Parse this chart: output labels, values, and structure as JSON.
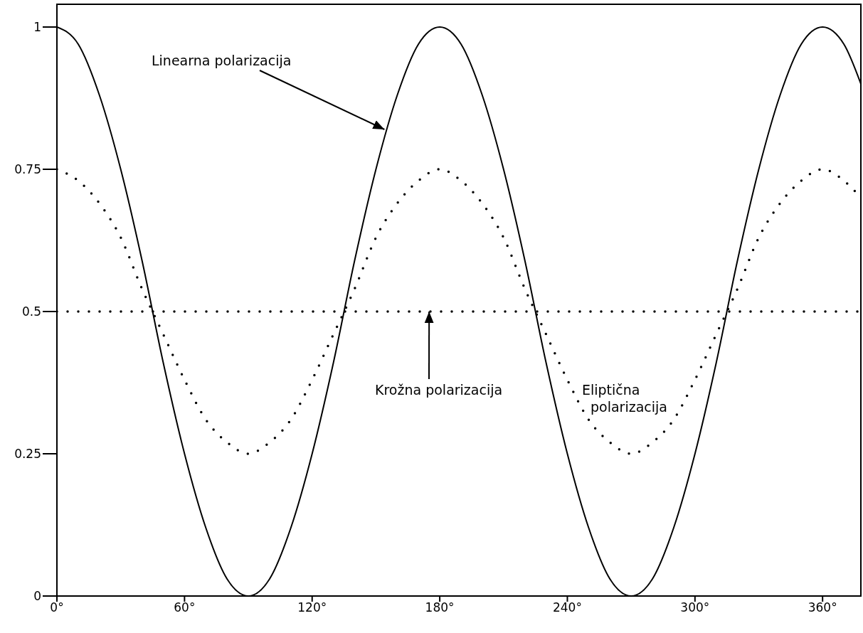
{
  "chart_data": {
    "type": "line",
    "xlim": [
      0,
      378
    ],
    "ylim": [
      0,
      1.04
    ],
    "xticks": [
      {
        "value": 0,
        "label": "0°"
      },
      {
        "value": 60,
        "label": "60°"
      },
      {
        "value": 120,
        "label": "120°"
      },
      {
        "value": 180,
        "label": "180°"
      },
      {
        "value": 240,
        "label": "240°"
      },
      {
        "value": 300,
        "label": "300°"
      },
      {
        "value": 360,
        "label": "360°"
      }
    ],
    "yticks": [
      0,
      0.25,
      0.5,
      0.75,
      1
    ],
    "grid": false,
    "legend": false,
    "marker": "none",
    "series": [
      {
        "color": "#000000",
        "line_style": "solid",
        "x": [
          0,
          10,
          20,
          30,
          40,
          50,
          60,
          70,
          80,
          90,
          100,
          110,
          120,
          130,
          140,
          150,
          160,
          170,
          180,
          190,
          200,
          210,
          220,
          230,
          240,
          250,
          260,
          270,
          280,
          290,
          300,
          310,
          320,
          330,
          340,
          350,
          360,
          370,
          378
        ],
        "values": [
          1,
          0.97,
          0.88,
          0.75,
          0.59,
          0.41,
          0.25,
          0.12,
          0.03,
          0,
          0.03,
          0.12,
          0.25,
          0.41,
          0.59,
          0.75,
          0.88,
          0.97,
          1,
          0.97,
          0.88,
          0.75,
          0.59,
          0.41,
          0.25,
          0.12,
          0.03,
          0,
          0.03,
          0.12,
          0.25,
          0.41,
          0.59,
          0.75,
          0.88,
          0.97,
          1,
          0.97,
          0.9
        ]
      },
      {
        "color": "#000000",
        "line_style": "dotted",
        "x": [
          0,
          10,
          20,
          30,
          40,
          50,
          60,
          70,
          80,
          90,
          100,
          110,
          120,
          130,
          140,
          150,
          160,
          170,
          180,
          190,
          200,
          210,
          220,
          230,
          240,
          250,
          260,
          270,
          280,
          290,
          300,
          310,
          320,
          330,
          340,
          350,
          360,
          370,
          378
        ],
        "values": [
          0.75,
          0.73,
          0.69,
          0.63,
          0.54,
          0.46,
          0.38,
          0.31,
          0.27,
          0.25,
          0.27,
          0.31,
          0.38,
          0.46,
          0.54,
          0.63,
          0.69,
          0.73,
          0.75,
          0.73,
          0.69,
          0.63,
          0.54,
          0.46,
          0.38,
          0.31,
          0.27,
          0.25,
          0.27,
          0.31,
          0.38,
          0.46,
          0.54,
          0.63,
          0.69,
          0.73,
          0.75,
          0.73,
          0.7
        ]
      },
      {
        "color": "#000000",
        "line_style": "dotted",
        "x": [
          0,
          378
        ],
        "values": [
          0.5,
          0.5
        ]
      }
    ],
    "annotations": [
      {
        "text": "Linearna polarizacija",
        "x": 154,
        "y": 0.82
      },
      {
        "text": "Krožna polarizacija",
        "x": 175,
        "y": 0.5
      },
      "Eliptična polarizacija"
    ]
  }
}
